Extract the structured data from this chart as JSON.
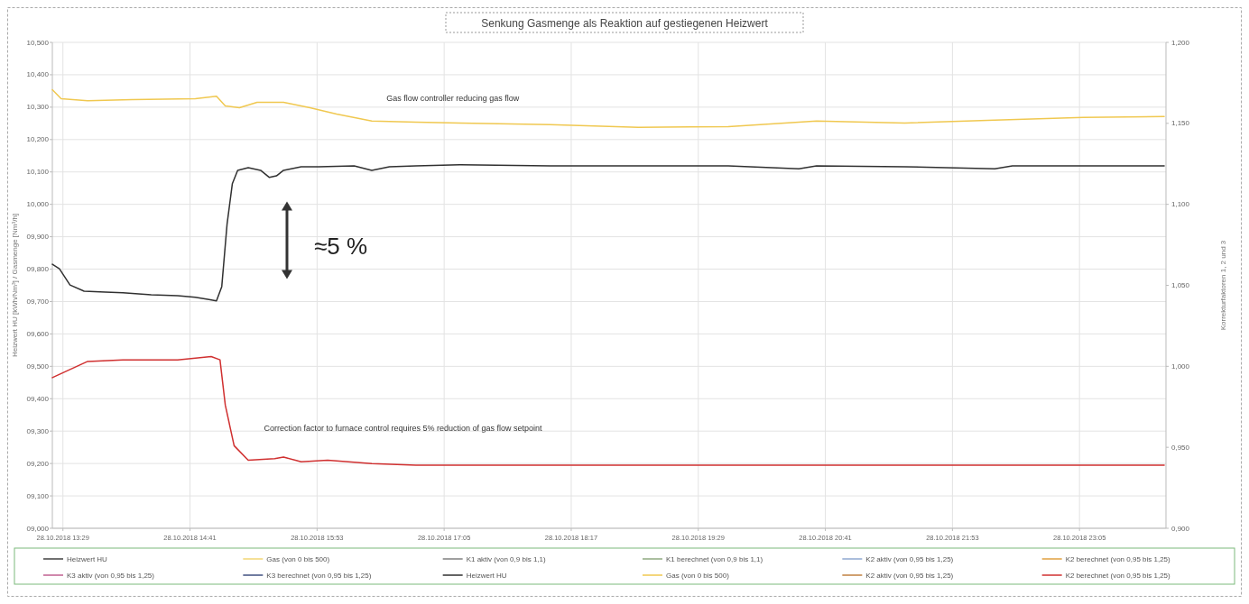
{
  "chart_data": {
    "type": "line",
    "title": "Senkung Gasmenge als Reaktion auf gestiegenen Heizwert",
    "ylabel": "Heizwert HU [kWh/Nm³] / Gasmenge [Nm³/h]",
    "y2label": "Korrekturfaktoren 1, 2 und 3",
    "xlim": [
      "2018-10-28T13:23",
      "2018-10-28T23:54"
    ],
    "xticks": [
      {
        "value": "2018-10-28T13:29",
        "label": "28.10.2018 13:29"
      },
      {
        "value": "2018-10-28T14:41",
        "label": "28.10.2018 14:41"
      },
      {
        "value": "2018-10-28T15:53",
        "label": "28.10.2018 15:53"
      },
      {
        "value": "2018-10-28T17:05",
        "label": "28.10.2018 17:05"
      },
      {
        "value": "2018-10-28T18:17",
        "label": "28.10.2018 18:17"
      },
      {
        "value": "2018-10-28T19:29",
        "label": "28.10.2018 19:29"
      },
      {
        "value": "2018-10-28T20:41",
        "label": "28.10.2018 20:41"
      },
      {
        "value": "2018-10-28T21:53",
        "label": "28.10.2018 21:53"
      },
      {
        "value": "2018-10-28T23:05",
        "label": "28.10.2018 23:05"
      }
    ],
    "ylim": [
      9.0,
      10.5
    ],
    "yticks": [
      {
        "value": 9.0,
        "label": "09,000"
      },
      {
        "value": 9.1,
        "label": "09,100"
      },
      {
        "value": 9.2,
        "label": "09,200"
      },
      {
        "value": 9.3,
        "label": "09,300"
      },
      {
        "value": 9.4,
        "label": "09,400"
      },
      {
        "value": 9.5,
        "label": "09,500"
      },
      {
        "value": 9.6,
        "label": "09,600"
      },
      {
        "value": 9.7,
        "label": "09,700"
      },
      {
        "value": 9.8,
        "label": "09,800"
      },
      {
        "value": 9.9,
        "label": "09,900"
      },
      {
        "value": 10.0,
        "label": "10,000"
      },
      {
        "value": 10.1,
        "label": "10,100"
      },
      {
        "value": 10.2,
        "label": "10,200"
      },
      {
        "value": 10.3,
        "label": "10,300"
      },
      {
        "value": 10.4,
        "label": "10,400"
      },
      {
        "value": 10.5,
        "label": "10,500"
      }
    ],
    "y2lim": [
      0.9,
      1.2
    ],
    "y2ticks": [
      {
        "value": 0.9,
        "label": "0,900"
      },
      {
        "value": 0.95,
        "label": "0,950"
      },
      {
        "value": 1.0,
        "label": "1,000"
      },
      {
        "value": 1.05,
        "label": "1,050"
      },
      {
        "value": 1.1,
        "label": "1,100"
      },
      {
        "value": 1.15,
        "label": "1,150"
      },
      {
        "value": 1.2,
        "label": "1,200"
      }
    ],
    "grid": true,
    "legend": "bottom",
    "marker": "none",
    "line_style": "solid",
    "annotations": [
      "Gas flow controller reducing gas flow",
      "Correction factor to furnace control requires 5% reduction of gas flow setpoint",
      "≈5 %"
    ],
    "series": [
      {
        "name": "Heizwert HU",
        "color": "#404040",
        "values": [
          null
        ]
      },
      {
        "name": "Gas (von 0 bis 500)",
        "color": "#f2d675",
        "values": [
          null
        ]
      },
      {
        "name": "K1 aktiv (von 0,9 bis 1,1)",
        "color": "#7f7f7f",
        "axis": "y2",
        "values": [
          null
        ]
      },
      {
        "name": "K1 berechnet (von 0,9 bis 1,1)",
        "color": "#8faa80",
        "axis": "y2",
        "values": [
          null
        ]
      },
      {
        "name": "K2 aktiv (von 0,95 bis 1,25)",
        "color": "#8fa8d0",
        "axis": "y2",
        "values": [
          null
        ]
      },
      {
        "name": "K2 berechnet (von 0,95 bis 1,25)",
        "color": "#e0a040",
        "axis": "y2",
        "values": [
          null
        ]
      },
      {
        "name": "K3 aktiv (von 0,95 bis 1,25)",
        "color": "#c06090",
        "axis": "y2",
        "values": [
          null
        ]
      },
      {
        "name": "K3 berechnet (von 0,95 bis 1,25)",
        "color": "#405080",
        "axis": "y2",
        "values": [
          null
        ]
      },
      {
        "name": "Heizwert HU",
        "color": "#303030",
        "x": [
          "2018-10-28T13:23",
          "2018-10-28T13:27",
          "2018-10-28T13:33",
          "2018-10-28T13:41",
          "2018-10-28T13:53",
          "2018-10-28T14:03",
          "2018-10-28T14:19",
          "2018-10-28T14:34",
          "2018-10-28T14:44",
          "2018-10-28T14:51",
          "2018-10-28T14:56",
          "2018-10-28T14:59",
          "2018-10-28T15:02",
          "2018-10-28T15:05",
          "2018-10-28T15:08",
          "2018-10-28T15:14",
          "2018-10-28T15:21",
          "2018-10-28T15:26",
          "2018-10-28T15:30",
          "2018-10-28T15:34",
          "2018-10-28T15:44",
          "2018-10-28T15:54",
          "2018-10-28T16:14",
          "2018-10-28T16:24",
          "2018-10-28T16:34",
          "2018-10-28T16:49",
          "2018-10-28T17:14",
          "2018-10-28T18:05",
          "2018-10-28T19:46",
          "2018-10-28T20:26",
          "2018-10-28T20:36",
          "2018-10-28T21:26",
          "2018-10-28T22:17",
          "2018-10-28T22:27",
          "2018-10-28T23:07",
          "2018-10-28T23:53"
        ],
        "values": [
          9.815,
          9.801,
          9.751,
          9.732,
          9.729,
          9.727,
          9.721,
          9.718,
          9.713,
          9.707,
          9.702,
          9.746,
          9.939,
          10.064,
          10.105,
          10.113,
          10.105,
          10.083,
          10.088,
          10.105,
          10.116,
          10.116,
          10.119,
          10.105,
          10.116,
          10.119,
          10.122,
          10.119,
          10.119,
          10.11,
          10.119,
          10.116,
          10.11,
          10.119,
          10.119,
          10.119
        ]
      },
      {
        "name": "Gas (von 0 bis 500)",
        "color": "#f0c850",
        "x": [
          "2018-10-28T13:23",
          "2018-10-28T13:28",
          "2018-10-28T13:43",
          "2018-10-28T14:08",
          "2018-10-28T14:44",
          "2018-10-28T14:56",
          "2018-10-28T15:01",
          "2018-10-28T15:09",
          "2018-10-28T15:19",
          "2018-10-28T15:34",
          "2018-10-28T15:49",
          "2018-10-28T16:04",
          "2018-10-28T16:24",
          "2018-10-28T16:49",
          "2018-10-28T17:14",
          "2018-10-28T18:05",
          "2018-10-28T18:55",
          "2018-10-28T19:46",
          "2018-10-28T20:36",
          "2018-10-28T21:26",
          "2018-10-28T22:17",
          "2018-10-28T23:07",
          "2018-10-28T23:53"
        ],
        "values": [
          10.354,
          10.326,
          10.32,
          10.323,
          10.326,
          10.334,
          10.304,
          10.298,
          10.315,
          10.315,
          10.298,
          10.279,
          10.257,
          10.254,
          10.251,
          10.246,
          10.238,
          10.24,
          10.257,
          10.251,
          10.26,
          10.268,
          10.271
        ]
      },
      {
        "name": "K2 aktiv (von 0,95 bis 1,25)",
        "color": "#c08040",
        "axis": "y2",
        "values": [
          null
        ]
      },
      {
        "name": "K2 berechnet (von 0,95 bis 1,25)",
        "color": "#d03030",
        "axis": "y2",
        "x": [
          "2018-10-28T13:23",
          "2018-10-28T13:33",
          "2018-10-28T13:43",
          "2018-10-28T14:03",
          "2018-10-28T14:34",
          "2018-10-28T14:53",
          "2018-10-28T14:58",
          "2018-10-28T15:01",
          "2018-10-28T15:06",
          "2018-10-28T15:14",
          "2018-10-28T15:29",
          "2018-10-28T15:34",
          "2018-10-28T15:44",
          "2018-10-28T15:59",
          "2018-10-28T16:24",
          "2018-10-28T16:49",
          "2018-10-28T17:14",
          "2018-10-28T18:05",
          "2018-10-28T19:46",
          "2018-10-28T21:26",
          "2018-10-28T23:53"
        ],
        "values": [
          0.993,
          0.998,
          1.003,
          1.004,
          1.004,
          1.006,
          1.004,
          0.976,
          0.951,
          0.942,
          0.943,
          0.944,
          0.941,
          0.942,
          0.94,
          0.939,
          0.939,
          0.939,
          0.939,
          0.939,
          0.939
        ]
      }
    ]
  }
}
